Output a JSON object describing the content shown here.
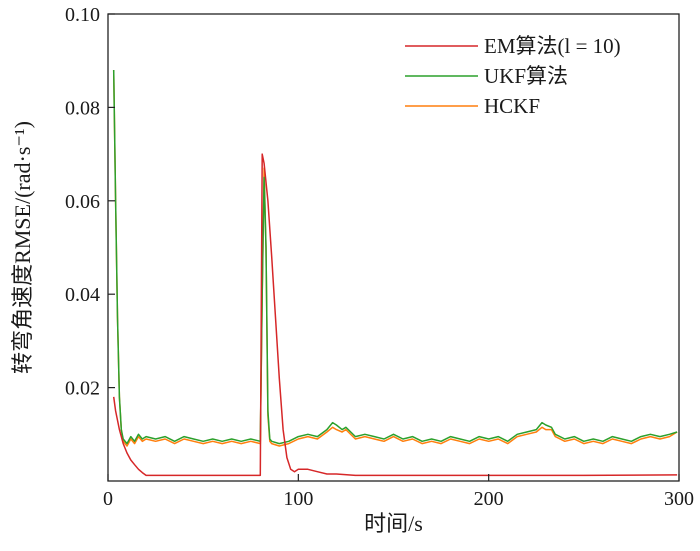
{
  "chart_data": {
    "type": "line",
    "title": "",
    "xlabel": "时间/s",
    "ylabel": "转弯角速度RMSE/(rad·s⁻¹)",
    "xlim": [
      0,
      300
    ],
    "ylim": [
      0,
      0.1
    ],
    "xticks": [
      0,
      100,
      200,
      300
    ],
    "xtick_labels": [
      "0",
      "100",
      "200",
      "300"
    ],
    "yticks": [
      0.02,
      0.04,
      0.06,
      0.08,
      0.1
    ],
    "ytick_labels": [
      "0.02",
      "0.04",
      "0.06",
      "0.08",
      "0.10"
    ],
    "grid": false,
    "legend_position": "top-right",
    "series": [
      {
        "name": "EM算法(l = 10)",
        "color": "#d62728",
        "x": [
          3,
          4,
          6,
          8,
          10,
          12,
          14,
          16,
          18,
          20,
          30,
          50,
          70,
          80,
          81,
          82,
          84,
          86,
          88,
          90,
          92,
          94,
          96,
          98,
          100,
          105,
          110,
          115,
          120,
          130,
          150,
          200,
          250,
          299
        ],
        "values": [
          0.018,
          0.015,
          0.011,
          0.008,
          0.006,
          0.0045,
          0.0035,
          0.0025,
          0.0018,
          0.0012,
          0.0012,
          0.0012,
          0.0012,
          0.0012,
          0.07,
          0.068,
          0.06,
          0.048,
          0.035,
          0.022,
          0.011,
          0.005,
          0.0025,
          0.002,
          0.0025,
          0.0025,
          0.002,
          0.0015,
          0.0015,
          0.0012,
          0.0012,
          0.0012,
          0.0012,
          0.0013
        ]
      },
      {
        "name": "UKF算法",
        "color": "#2ca02c",
        "x": [
          3,
          4,
          5,
          6,
          7,
          8,
          10,
          12,
          14,
          16,
          18,
          20,
          25,
          30,
          35,
          40,
          45,
          50,
          55,
          60,
          65,
          70,
          75,
          80,
          81,
          82,
          83,
          84,
          85,
          86,
          90,
          95,
          100,
          105,
          110,
          115,
          118,
          120,
          123,
          125,
          130,
          135,
          140,
          145,
          150,
          155,
          160,
          165,
          170,
          175,
          180,
          185,
          190,
          195,
          200,
          205,
          210,
          215,
          220,
          225,
          228,
          230,
          233,
          235,
          240,
          245,
          250,
          255,
          260,
          265,
          270,
          275,
          280,
          285,
          290,
          295,
          299
        ],
        "values": [
          0.088,
          0.06,
          0.035,
          0.018,
          0.011,
          0.009,
          0.008,
          0.0095,
          0.0085,
          0.01,
          0.009,
          0.0095,
          0.009,
          0.0095,
          0.0085,
          0.0095,
          0.009,
          0.0085,
          0.009,
          0.0085,
          0.009,
          0.0085,
          0.009,
          0.0085,
          0.04,
          0.065,
          0.05,
          0.015,
          0.009,
          0.0085,
          0.008,
          0.0085,
          0.0095,
          0.01,
          0.0095,
          0.011,
          0.0125,
          0.012,
          0.011,
          0.0115,
          0.0095,
          0.01,
          0.0095,
          0.009,
          0.01,
          0.009,
          0.0095,
          0.0085,
          0.009,
          0.0085,
          0.0095,
          0.009,
          0.0085,
          0.0095,
          0.009,
          0.0095,
          0.0085,
          0.01,
          0.0105,
          0.011,
          0.0125,
          0.012,
          0.0115,
          0.01,
          0.009,
          0.0095,
          0.0085,
          0.009,
          0.0085,
          0.0095,
          0.009,
          0.0085,
          0.0095,
          0.01,
          0.0095,
          0.01,
          0.0105
        ]
      },
      {
        "name": "HCKF",
        "color": "#ff7f0e",
        "x": [
          3,
          4,
          5,
          6,
          7,
          8,
          10,
          12,
          14,
          16,
          18,
          20,
          25,
          30,
          35,
          40,
          45,
          50,
          55,
          60,
          65,
          70,
          75,
          80,
          81,
          82,
          83,
          84,
          85,
          86,
          90,
          95,
          100,
          105,
          110,
          115,
          118,
          120,
          123,
          125,
          130,
          135,
          140,
          145,
          150,
          155,
          160,
          165,
          170,
          175,
          180,
          185,
          190,
          195,
          200,
          205,
          210,
          215,
          220,
          225,
          228,
          230,
          233,
          235,
          240,
          245,
          250,
          255,
          260,
          265,
          270,
          275,
          280,
          285,
          290,
          295,
          299
        ],
        "values": [
          0.088,
          0.06,
          0.035,
          0.018,
          0.011,
          0.0085,
          0.0075,
          0.009,
          0.008,
          0.0095,
          0.0085,
          0.009,
          0.0085,
          0.009,
          0.008,
          0.009,
          0.0085,
          0.008,
          0.0085,
          0.008,
          0.0085,
          0.008,
          0.0085,
          0.008,
          0.04,
          0.067,
          0.05,
          0.014,
          0.0085,
          0.008,
          0.0075,
          0.008,
          0.009,
          0.0095,
          0.009,
          0.0105,
          0.0115,
          0.011,
          0.0105,
          0.011,
          0.009,
          0.0095,
          0.009,
          0.0085,
          0.0095,
          0.0085,
          0.009,
          0.008,
          0.0085,
          0.008,
          0.009,
          0.0085,
          0.008,
          0.009,
          0.0085,
          0.009,
          0.008,
          0.0095,
          0.01,
          0.0105,
          0.0115,
          0.011,
          0.011,
          0.0095,
          0.0085,
          0.009,
          0.008,
          0.0085,
          0.008,
          0.009,
          0.0085,
          0.008,
          0.009,
          0.0095,
          0.009,
          0.0095,
          0.0105
        ]
      }
    ]
  }
}
